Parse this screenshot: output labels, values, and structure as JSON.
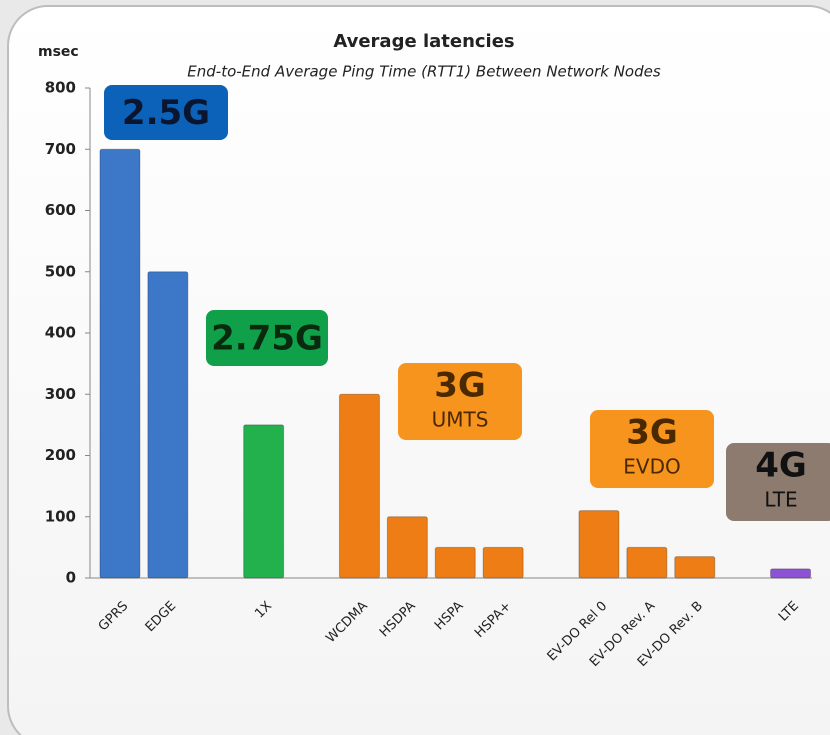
{
  "chart_data": {
    "type": "bar",
    "title": "Average latencies",
    "subtitle": "End-to-End Average Ping Time (RTT1) Between Network Nodes",
    "y_label": "msec",
    "categories": [
      "GPRS",
      "EDGE",
      null,
      "1X",
      null,
      "WCDMA",
      "HSDPA",
      "HSPA",
      "HSPA+",
      null,
      "EV-DO Rel 0",
      "EV-DO Rev. A",
      "EV-DO Rev. B",
      null,
      "LTE"
    ],
    "values": [
      700,
      500,
      null,
      250,
      null,
      300,
      100,
      50,
      50,
      null,
      110,
      50,
      35,
      null,
      15
    ],
    "colors": [
      "#3d77c8",
      "#3d77c8",
      null,
      "#22b14c",
      null,
      "#ee7d15",
      "#ee7d15",
      "#ee7d15",
      "#ee7d15",
      null,
      "#ee7d15",
      "#ee7d15",
      "#ee7d15",
      null,
      "#8e52d6"
    ],
    "ylim": [
      0,
      800
    ],
    "yticks": [
      0,
      100,
      200,
      300,
      400,
      500,
      600,
      700,
      800
    ],
    "grid": false,
    "annotations": [
      {
        "lines": [
          "2.5G"
        ],
        "color": "#0b62b8",
        "text_color": "#0a1630"
      },
      {
        "lines": [
          "2.75G"
        ],
        "color": "#11a04a",
        "text_color": "#0a2a10"
      },
      {
        "lines": [
          "3G",
          "UMTS"
        ],
        "color": "#f7941d",
        "text_color": "#4a2800"
      },
      {
        "lines": [
          "3G",
          "EVDO"
        ],
        "color": "#f7941d",
        "text_color": "#4a2800"
      },
      {
        "lines": [
          "4G",
          "LTE"
        ],
        "color": "#8c7b6e",
        "text_color": "#111111"
      }
    ]
  }
}
